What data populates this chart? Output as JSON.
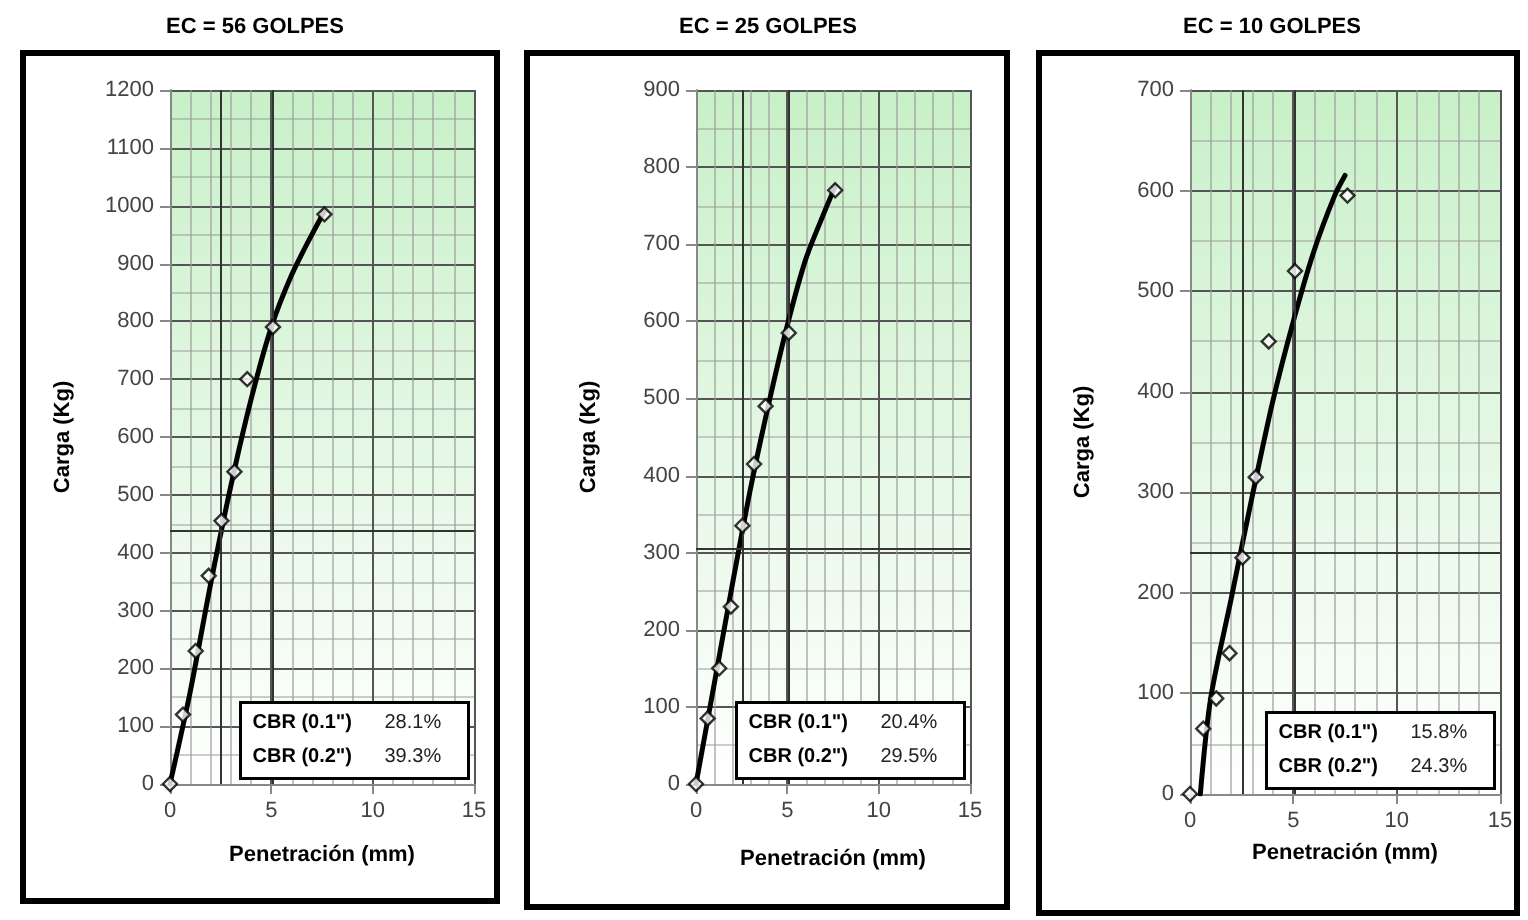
{
  "chart_data": [
    {
      "type": "scatter",
      "title": "EC = 56 GOLPES",
      "xlabel": "Penetración (mm)",
      "ylabel": "Carga (Kg)",
      "xlim": [
        0,
        15
      ],
      "xticks": [
        0,
        5,
        10,
        15
      ],
      "ylim": [
        0,
        1200
      ],
      "yticks": [
        0,
        100,
        200,
        300,
        400,
        500,
        600,
        700,
        800,
        900,
        1000,
        1100,
        1200
      ],
      "grid": true,
      "line_style": "solid",
      "series": [
        {
          "marker": "diamond",
          "color": "#000000",
          "x": [
            0,
            0.64,
            1.27,
            1.91,
            2.54,
            3.18,
            3.81,
            5.08,
            7.62
          ],
          "values": [
            0,
            120,
            230,
            360,
            455,
            540,
            700,
            790,
            985
          ]
        },
        {
          "type": "line",
          "marker": "none",
          "color": "#000000",
          "x": [
            0,
            1,
            2,
            3,
            4,
            5,
            6,
            7,
            7.62
          ],
          "values": [
            0,
            160,
            345,
            515,
            665,
            790,
            880,
            950,
            990
          ]
        }
      ],
      "ref_lines": [
        {
          "axis": "x",
          "value": 2.54
        },
        {
          "axis": "x",
          "value": 5.08
        },
        {
          "axis": "y",
          "value": 440
        }
      ],
      "annotations": [
        "CBR (0.1\")",
        "28.1%",
        "CBR (0.2\")",
        "39.3%"
      ]
    },
    {
      "type": "scatter",
      "title": "EC = 25 GOLPES",
      "xlabel": "Penetración (mm)",
      "ylabel": "Carga (Kg)",
      "xlim": [
        0,
        15
      ],
      "xticks": [
        0,
        5,
        10,
        15
      ],
      "ylim": [
        0,
        900
      ],
      "yticks": [
        0,
        100,
        200,
        300,
        400,
        500,
        600,
        700,
        800,
        900
      ],
      "grid": true,
      "line_style": "solid",
      "series": [
        {
          "marker": "diamond",
          "color": "#000000",
          "x": [
            0,
            0.64,
            1.27,
            1.91,
            2.54,
            3.18,
            3.81,
            5.08,
            7.62
          ],
          "values": [
            0,
            85,
            150,
            230,
            335,
            415,
            490,
            585,
            770
          ]
        },
        {
          "type": "line",
          "marker": "none",
          "color": "#000000",
          "x": [
            0,
            1,
            2,
            3,
            4,
            5,
            6,
            7,
            7.62
          ],
          "values": [
            0,
            130,
            260,
            385,
            495,
            595,
            680,
            740,
            775
          ]
        }
      ],
      "ref_lines": [
        {
          "axis": "x",
          "value": 2.54
        },
        {
          "axis": "x",
          "value": 5.08
        },
        {
          "axis": "y",
          "value": 305
        }
      ],
      "annotations": [
        "CBR (0.1\")",
        "20.4%",
        "CBR (0.2\")",
        "29.5%"
      ]
    },
    {
      "type": "scatter",
      "title": "EC = 10 GOLPES",
      "xlabel": "Penetración (mm)",
      "ylabel": "Carga (Kg)",
      "xlim": [
        0,
        15
      ],
      "xticks": [
        0,
        5,
        10,
        15
      ],
      "ylim": [
        0,
        700
      ],
      "yticks": [
        0,
        100,
        200,
        300,
        400,
        500,
        600,
        700
      ],
      "grid": true,
      "line_style": "solid",
      "series": [
        {
          "marker": "diamond",
          "color": "#000000",
          "x": [
            0,
            0.64,
            1.27,
            1.91,
            2.54,
            3.18,
            3.81,
            5.08,
            7.62
          ],
          "values": [
            0,
            65,
            95,
            140,
            235,
            315,
            450,
            520,
            595
          ]
        },
        {
          "type": "line",
          "marker": "none",
          "color": "#000000",
          "x": [
            0.5,
            1,
            2,
            3,
            4,
            5,
            6,
            7,
            7.5
          ],
          "values": [
            0,
            95,
            195,
            295,
            390,
            470,
            540,
            595,
            615
          ]
        }
      ],
      "ref_lines": [
        {
          "axis": "x",
          "value": 2.54
        },
        {
          "axis": "x",
          "value": 5.08
        },
        {
          "axis": "y",
          "value": 240
        }
      ],
      "annotations": [
        "CBR (0.1\")",
        "15.8%",
        "CBR (0.2\")",
        "24.3%"
      ]
    }
  ]
}
